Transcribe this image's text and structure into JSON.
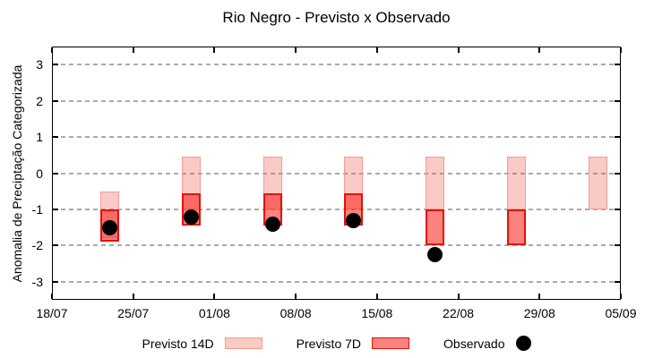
{
  "title": "Rio Negro - Previsto x Observado",
  "legend": {
    "items": [
      {
        "label": "Previsto 14D"
      },
      {
        "label": "Previsto 7D"
      },
      {
        "label": "Observado"
      }
    ]
  },
  "colors": {
    "previsto_14d_fill": "#EE5046",
    "previsto_14d_fill_alpha": 0.3,
    "previsto_14d_border": "#F69A94",
    "previsto_7d_fill": "#F71E14",
    "previsto_7d_fill_alpha": 0.55,
    "previsto_7d_border": "#E21309",
    "observado": "#000000",
    "grid": "#ABABAB",
    "axis": "#000000",
    "text": "#000000"
  },
  "chart_data": {
    "type": "bar",
    "title": "Rio Negro - Previsto x Observado",
    "xlabel": "",
    "ylabel": "Anomalia de Preciptação Categorizada",
    "ylim": [
      -3.5,
      3.5
    ],
    "y_ticks": [
      3,
      2,
      1,
      0,
      -1,
      -2,
      -3
    ],
    "grid": "horizontal-dashed",
    "legend_position": "bottom",
    "x_ticks": {
      "labels": [
        "18/07",
        "25/07",
        "01/08",
        "08/08",
        "15/08",
        "22/08",
        "29/08",
        "05/09"
      ],
      "days": [
        0,
        7,
        14,
        21,
        28,
        35,
        42,
        49
      ],
      "span_days": 49
    },
    "series_meta": [
      {
        "name": "Previsto 14D",
        "style": "range-box",
        "fill": "#FACAC6",
        "border": "#F69A94"
      },
      {
        "name": "Previsto 7D",
        "style": "range-box",
        "fill": "#FA837D",
        "border": "#E21309"
      },
      {
        "name": "Observado",
        "style": "point",
        "color": "#000000"
      }
    ],
    "bars": [
      {
        "date": "23/07",
        "day": 5,
        "previsto_14d": [
          -1.8,
          -0.5
        ],
        "previsto_7d": [
          -1.9,
          -1.0
        ],
        "observado": -1.5
      },
      {
        "date": "30/07",
        "day": 12,
        "previsto_14d": [
          -1.0,
          0.45
        ],
        "previsto_7d": [
          -1.45,
          -0.55
        ],
        "observado": -1.2
      },
      {
        "date": "06/08",
        "day": 19,
        "previsto_14d": [
          -1.0,
          0.45
        ],
        "previsto_7d": [
          -1.45,
          -0.55
        ],
        "observado": -1.4
      },
      {
        "date": "13/08",
        "day": 26,
        "previsto_14d": [
          -1.0,
          0.45
        ],
        "previsto_7d": [
          -1.45,
          -0.55
        ],
        "observado": -1.3
      },
      {
        "date": "20/08",
        "day": 33,
        "previsto_14d": [
          -1.0,
          0.45
        ],
        "previsto_7d": [
          -2.0,
          -1.0
        ],
        "observado": -2.25
      },
      {
        "date": "27/08",
        "day": 40,
        "previsto_14d": [
          -1.0,
          0.45
        ],
        "previsto_7d": [
          -2.0,
          -1.0
        ],
        "observado": null
      },
      {
        "date": "03/09",
        "day": 47,
        "previsto_14d": [
          -1.0,
          0.45
        ],
        "previsto_7d": null,
        "observado": null
      }
    ]
  }
}
